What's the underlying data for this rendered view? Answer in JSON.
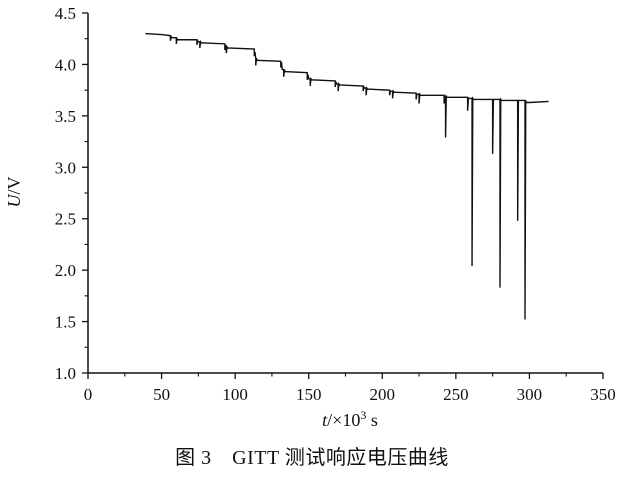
{
  "chart_data": {
    "type": "line",
    "title": "",
    "xlabel": "t/×10³ s",
    "xlabel_italic": "t",
    "xlabel_rest": "/×10",
    "xlabel_exp": "3",
    "xlabel_unit": " s",
    "ylabel": "U/V",
    "ylabel_italic": "U",
    "ylabel_rest": "/V",
    "xlim": [
      0,
      350
    ],
    "ylim": [
      1.0,
      4.5
    ],
    "xticks": [
      0,
      50,
      100,
      150,
      200,
      250,
      300,
      350
    ],
    "xtick_labels": [
      "0",
      "50",
      "100",
      "150",
      "200",
      "250",
      "300",
      "350"
    ],
    "yticks": [
      1.0,
      1.5,
      2.0,
      2.5,
      3.0,
      3.5,
      4.0,
      4.5
    ],
    "ytick_labels": [
      "1.0",
      "1.5",
      "2.0",
      "2.5",
      "3.0",
      "3.5",
      "4.0",
      "4.5"
    ],
    "grid": false,
    "line_color": "#111111",
    "series": [
      {
        "x": [
          39,
          50,
          56,
          56,
          56.5,
          57,
          60,
          60,
          60.5,
          61,
          74,
          74,
          74.5,
          75,
          76,
          76,
          76.5,
          77,
          93,
          93,
          93.5,
          94,
          94,
          94,
          94.5,
          95,
          113,
          113,
          113.5,
          114,
          114,
          114,
          114.5,
          115,
          131,
          131,
          131.5,
          132,
          133,
          133,
          133.5,
          134,
          149,
          149,
          149.5,
          150,
          151,
          151,
          151.5,
          152,
          168,
          168,
          168.5,
          169,
          170,
          170,
          170.5,
          171,
          187,
          187,
          187.5,
          188,
          189,
          189,
          189.5,
          190,
          205,
          205,
          205.5,
          206,
          207,
          207,
          207.5,
          208,
          223,
          223,
          223.5,
          224,
          225,
          225,
          225.5,
          226,
          242,
          242,
          242.5,
          243,
          243,
          243,
          243.5,
          244,
          258,
          258,
          258.5,
          259,
          261,
          261,
          261.5,
          262,
          275,
          275,
          275.5,
          276,
          280,
          280,
          280.5,
          281,
          292,
          292,
          292.5,
          293,
          297,
          297,
          297.5,
          298,
          300,
          313
        ],
        "y": [
          4.3,
          4.29,
          4.28,
          4.23,
          4.27,
          4.26,
          4.26,
          4.2,
          4.25,
          4.24,
          4.24,
          4.19,
          4.23,
          4.22,
          4.22,
          4.16,
          4.22,
          4.21,
          4.2,
          4.14,
          4.19,
          4.17,
          4.17,
          4.11,
          4.17,
          4.16,
          4.15,
          4.08,
          4.12,
          4.06,
          4.06,
          3.99,
          4.06,
          4.04,
          4.03,
          3.97,
          4.02,
          3.95,
          3.95,
          3.88,
          3.95,
          3.93,
          3.92,
          3.85,
          3.9,
          3.86,
          3.86,
          3.79,
          3.86,
          3.85,
          3.84,
          3.78,
          3.83,
          3.81,
          3.81,
          3.74,
          3.81,
          3.8,
          3.79,
          3.74,
          3.78,
          3.77,
          3.77,
          3.7,
          3.77,
          3.76,
          3.75,
          3.7,
          3.74,
          3.74,
          3.74,
          3.67,
          3.74,
          3.73,
          3.72,
          3.66,
          3.71,
          3.71,
          3.71,
          3.62,
          3.71,
          3.7,
          3.7,
          3.62,
          3.69,
          3.69,
          3.69,
          3.29,
          3.69,
          3.68,
          3.68,
          3.55,
          3.67,
          3.67,
          3.67,
          2.04,
          3.67,
          3.66,
          3.66,
          3.13,
          3.66,
          3.66,
          3.66,
          1.83,
          3.66,
          3.65,
          3.65,
          2.48,
          3.65,
          3.65,
          3.65,
          1.52,
          3.65,
          3.63,
          3.63,
          3.64
        ]
      }
    ]
  },
  "caption": {
    "figure_label": "图 3",
    "text": "GITT 测试响应电压曲线"
  }
}
